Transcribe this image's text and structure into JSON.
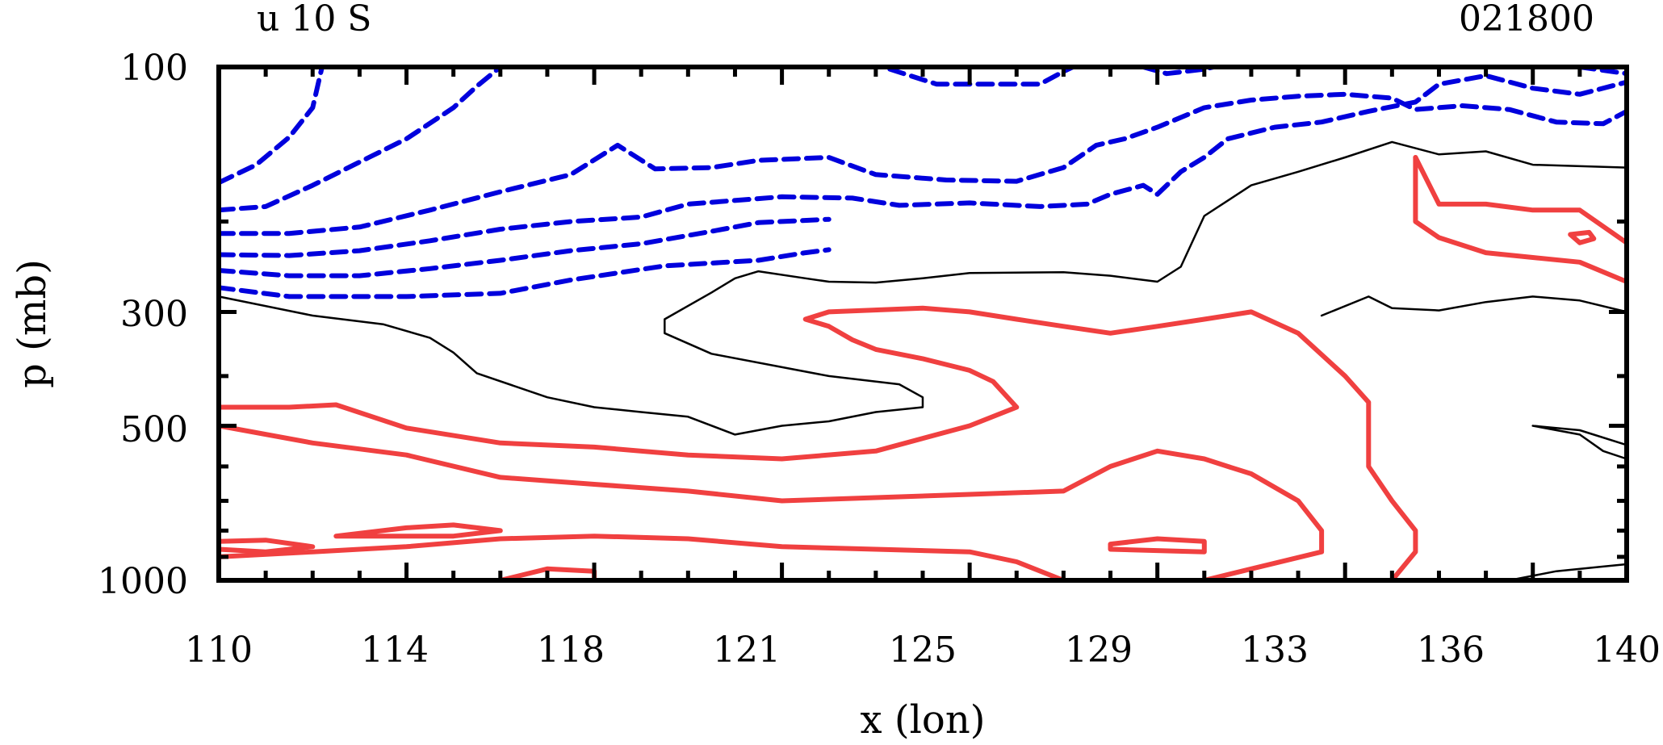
{
  "chart_data": {
    "type": "contour",
    "title_left": "u 10 S",
    "title_right": "021800",
    "xlabel": "x (lon)",
    "ylabel": "p (mb)",
    "x_ticks": [
      "110",
      "114",
      "118",
      "121",
      "125",
      "129",
      "133",
      "136",
      "140"
    ],
    "y_ticks": [
      "100",
      "300",
      "500",
      "1000"
    ],
    "xlim": [
      110,
      140
    ],
    "ylim": [
      1000,
      100
    ],
    "y_scale": "log",
    "grid": false,
    "colors": {
      "negative": "#0000dd",
      "zero": "#000000",
      "positive": "#f04040"
    },
    "contours": [
      {
        "level": "negative",
        "style": "dashed",
        "points": [
          [
            110,
            168
          ],
          [
            110.8,
            155
          ],
          [
            111.5,
            137
          ],
          [
            112,
            120
          ],
          [
            112.2,
            100
          ]
        ]
      },
      {
        "level": "negative",
        "style": "dashed",
        "points": [
          [
            110,
            190
          ],
          [
            111,
            187
          ],
          [
            112,
            170
          ],
          [
            113.2,
            150
          ],
          [
            114,
            138
          ],
          [
            115,
            120
          ],
          [
            115.5,
            109
          ],
          [
            116,
            100
          ]
        ]
      },
      {
        "level": "negative",
        "style": "dashed",
        "points": [
          [
            110,
            211
          ],
          [
            111.5,
            211
          ],
          [
            113,
            205
          ],
          [
            114.5,
            190
          ],
          [
            116,
            175
          ],
          [
            117.5,
            162
          ],
          [
            118.5,
            142
          ],
          [
            119.3,
            158
          ],
          [
            120.5,
            157
          ],
          [
            121.5,
            152
          ],
          [
            123,
            150
          ],
          [
            124,
            162
          ],
          [
            125.5,
            166
          ],
          [
            127,
            167
          ],
          [
            128,
            157
          ],
          [
            128.7,
            142
          ],
          [
            129.3,
            138
          ],
          [
            130,
            131
          ],
          [
            131,
            120
          ],
          [
            132,
            116
          ],
          [
            133,
            114
          ],
          [
            134,
            113
          ],
          [
            135,
            115
          ],
          [
            135.5,
            121
          ],
          [
            136.5,
            119
          ],
          [
            137.5,
            121
          ],
          [
            138.5,
            128
          ],
          [
            139.5,
            129
          ],
          [
            140,
            122
          ]
        ]
      },
      {
        "level": "negative",
        "style": "dashed",
        "points": [
          [
            110,
            232
          ],
          [
            111.5,
            233
          ],
          [
            113,
            228
          ],
          [
            114.5,
            218
          ],
          [
            116,
            207
          ],
          [
            117.5,
            200
          ],
          [
            119,
            196
          ],
          [
            120,
            185
          ],
          [
            122,
            179
          ],
          [
            123.5,
            180
          ],
          [
            124.5,
            186
          ],
          [
            126,
            184
          ],
          [
            127.5,
            187
          ],
          [
            128.5,
            185
          ],
          [
            129,
            177
          ],
          [
            129.7,
            170
          ],
          [
            130,
            177
          ],
          [
            130.5,
            160
          ],
          [
            131,
            150
          ],
          [
            131.5,
            138
          ],
          [
            132.5,
            131
          ],
          [
            133.5,
            128
          ],
          [
            134.5,
            122
          ],
          [
            135.5,
            117
          ],
          [
            136,
            108
          ],
          [
            137,
            104
          ],
          [
            138,
            110
          ],
          [
            139,
            113
          ],
          [
            140,
            107
          ]
        ]
      },
      {
        "level": "negative",
        "style": "dashed",
        "points": [
          [
            110,
            249
          ],
          [
            111.5,
            255
          ],
          [
            113,
            255
          ],
          [
            114.5,
            247
          ],
          [
            116,
            238
          ],
          [
            117.5,
            228
          ],
          [
            119,
            221
          ],
          [
            120.5,
            209
          ],
          [
            121.5,
            201
          ],
          [
            123,
            198
          ]
        ]
      },
      {
        "level": "negative",
        "style": "dashed",
        "points": [
          [
            110,
            269
          ],
          [
            111.5,
            280
          ],
          [
            114,
            280
          ],
          [
            116,
            276
          ],
          [
            117.5,
            260
          ],
          [
            119.5,
            244
          ],
          [
            121.5,
            238
          ],
          [
            122.5,
            230
          ],
          [
            123,
            227
          ]
        ]
      },
      {
        "level": "negative",
        "style": "dashed",
        "points": [
          [
            124.3,
            101
          ],
          [
            125.3,
            108
          ],
          [
            126.5,
            108
          ],
          [
            127.5,
            108
          ],
          [
            128,
            102
          ],
          [
            128.2,
            100
          ]
        ]
      },
      {
        "level": "negative",
        "style": "dashed",
        "points": [
          [
            129.7,
            100
          ],
          [
            130.2,
            103
          ],
          [
            131,
            101
          ],
          [
            131.2,
            100
          ]
        ]
      },
      {
        "level": "negative",
        "style": "dashed",
        "points": [
          [
            139,
            100
          ],
          [
            140,
            103
          ]
        ]
      },
      {
        "level": "zero",
        "style": "solid",
        "points": [
          [
            110,
            280
          ],
          [
            112,
            305
          ],
          [
            113.5,
            317
          ],
          [
            114.5,
            337
          ],
          [
            115,
            360
          ],
          [
            115.5,
            395
          ],
          [
            117,
            440
          ],
          [
            118,
            460
          ],
          [
            119,
            470
          ],
          [
            120,
            480
          ],
          [
            121,
            520
          ],
          [
            122,
            500
          ],
          [
            123,
            490
          ],
          [
            124,
            470
          ],
          [
            125,
            460
          ],
          [
            125,
            440
          ],
          [
            124.5,
            415
          ],
          [
            123,
            400
          ],
          [
            120.5,
            362
          ],
          [
            119.5,
            330
          ],
          [
            119.5,
            310
          ],
          [
            120.5,
            275
          ],
          [
            121,
            258
          ],
          [
            121.5,
            250
          ],
          [
            122.5,
            258
          ],
          [
            123,
            262
          ],
          [
            124,
            263
          ],
          [
            125,
            258
          ],
          [
            126,
            252
          ],
          [
            128,
            251
          ],
          [
            129,
            255
          ],
          [
            130,
            262
          ],
          [
            130.5,
            245
          ],
          [
            131,
            195
          ],
          [
            132,
            170
          ],
          [
            133,
            160
          ],
          [
            134,
            150
          ],
          [
            135,
            140
          ],
          [
            136,
            148
          ],
          [
            137,
            146
          ],
          [
            138,
            155
          ],
          [
            140,
            157
          ]
        ]
      },
      {
        "level": "zero",
        "style": "solid",
        "points": [
          [
            133.5,
            305
          ],
          [
            134.5,
            280
          ],
          [
            135,
            295
          ],
          [
            136,
            298
          ],
          [
            137,
            287
          ],
          [
            138,
            280
          ],
          [
            139,
            285
          ],
          [
            140,
            300
          ]
        ]
      },
      {
        "level": "zero",
        "style": "solid",
        "points": [
          [
            138,
            500
          ],
          [
            139,
            520
          ],
          [
            139.5,
            560
          ],
          [
            140,
            580
          ],
          [
            140,
            545
          ],
          [
            139,
            510
          ],
          [
            138,
            500
          ]
        ]
      },
      {
        "level": "zero",
        "style": "solid",
        "points": [
          [
            137.5,
            1000
          ],
          [
            138.5,
            960
          ],
          [
            139.5,
            940
          ],
          [
            140,
            930
          ]
        ]
      },
      {
        "level": "positive",
        "style": "solid",
        "points": [
          [
            110,
            500
          ],
          [
            112,
            540
          ],
          [
            114,
            570
          ],
          [
            116,
            630
          ],
          [
            118,
            650
          ],
          [
            120,
            670
          ],
          [
            122,
            700
          ],
          [
            124,
            690
          ],
          [
            126,
            680
          ],
          [
            128,
            670
          ],
          [
            129,
            600
          ],
          [
            130,
            560
          ],
          [
            131,
            580
          ],
          [
            131.5,
            600
          ],
          [
            132,
            620
          ],
          [
            133,
            700
          ],
          [
            133.5,
            800
          ],
          [
            133.5,
            880
          ],
          [
            132,
            950
          ],
          [
            131,
            1000
          ]
        ]
      },
      {
        "level": "positive",
        "style": "solid",
        "points": [
          [
            110,
            460
          ],
          [
            111.5,
            460
          ],
          [
            112.5,
            455
          ],
          [
            114,
            505
          ],
          [
            116,
            540
          ],
          [
            118,
            550
          ],
          [
            120,
            570
          ],
          [
            122,
            580
          ],
          [
            124,
            560
          ],
          [
            126,
            500
          ],
          [
            127,
            460
          ],
          [
            126.5,
            410
          ],
          [
            126,
            390
          ],
          [
            125,
            370
          ],
          [
            124,
            355
          ],
          [
            123.5,
            340
          ],
          [
            123,
            320
          ],
          [
            122.5,
            310
          ],
          [
            123,
            300
          ],
          [
            125,
            295
          ],
          [
            126,
            300
          ],
          [
            127,
            310
          ],
          [
            128,
            320
          ],
          [
            129,
            330
          ],
          [
            130,
            320
          ],
          [
            131,
            310
          ],
          [
            132,
            300
          ],
          [
            133,
            330
          ],
          [
            134,
            400
          ],
          [
            134.5,
            450
          ],
          [
            134.5,
            600
          ],
          [
            135,
            700
          ],
          [
            135.5,
            800
          ],
          [
            135.5,
            880
          ],
          [
            135,
            1000
          ]
        ]
      },
      {
        "level": "positive",
        "style": "solid",
        "points": [
          [
            110,
            840
          ],
          [
            111,
            835
          ],
          [
            112,
            860
          ],
          [
            111,
            880
          ],
          [
            110,
            870
          ]
        ]
      },
      {
        "level": "positive",
        "style": "solid",
        "points": [
          [
            112.5,
            820
          ],
          [
            114,
            790
          ],
          [
            115,
            780
          ],
          [
            116,
            800
          ],
          [
            115,
            820
          ],
          [
            112.5,
            820
          ]
        ]
      },
      {
        "level": "positive",
        "style": "solid",
        "points": [
          [
            110,
            900
          ],
          [
            112,
            880
          ],
          [
            114,
            860
          ],
          [
            116,
            830
          ],
          [
            118,
            820
          ],
          [
            120,
            830
          ],
          [
            122,
            860
          ],
          [
            124,
            870
          ],
          [
            126,
            880
          ],
          [
            127,
            920
          ],
          [
            128,
            1000
          ]
        ]
      },
      {
        "level": "positive",
        "style": "solid",
        "points": [
          [
            116,
            1000
          ],
          [
            117,
            950
          ],
          [
            118,
            960
          ],
          [
            118,
            1000
          ]
        ]
      },
      {
        "level": "positive",
        "style": "solid",
        "points": [
          [
            129,
            850
          ],
          [
            130,
            830
          ],
          [
            131,
            840
          ],
          [
            131,
            880
          ],
          [
            129,
            870
          ],
          [
            129,
            850
          ]
        ]
      },
      {
        "level": "positive",
        "style": "solid",
        "points": [
          [
            135.5,
            150
          ],
          [
            136,
            185
          ],
          [
            137,
            185
          ],
          [
            138,
            190
          ],
          [
            139,
            190
          ],
          [
            140,
            220
          ]
        ]
      },
      {
        "level": "positive",
        "style": "solid",
        "points": [
          [
            135.5,
            150
          ],
          [
            135.5,
            200
          ],
          [
            136,
            215
          ],
          [
            137,
            230
          ],
          [
            138,
            235
          ],
          [
            139,
            240
          ],
          [
            140,
            262
          ]
        ]
      },
      {
        "level": "positive",
        "style": "solid",
        "points": [
          [
            138.8,
            212
          ],
          [
            139.2,
            210
          ],
          [
            139.3,
            216
          ],
          [
            139,
            220
          ],
          [
            138.8,
            212
          ]
        ]
      }
    ]
  }
}
